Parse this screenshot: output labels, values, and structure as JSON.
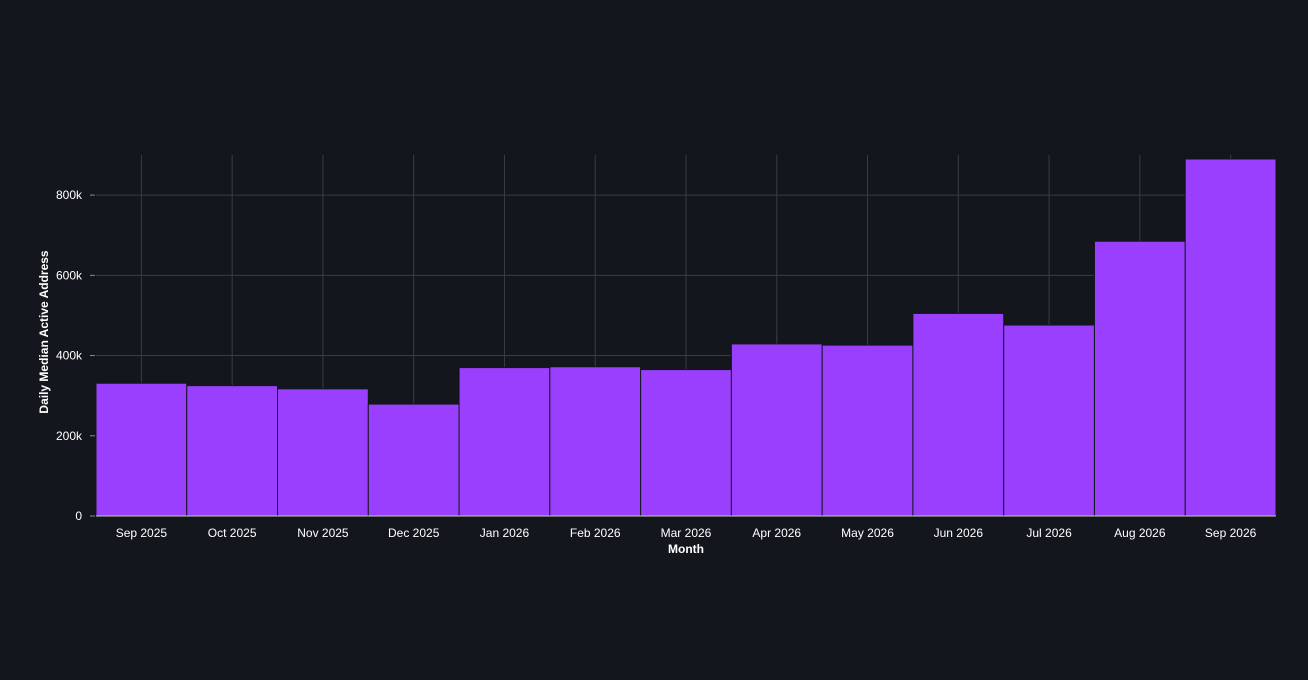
{
  "chart_data": {
    "type": "bar",
    "xlabel": "Month",
    "ylabel": "Daily Median Active Address",
    "categories": [
      "Sep 2025",
      "Oct 2025",
      "Nov 2025",
      "Dec 2025",
      "Jan 2026",
      "Feb 2026",
      "Mar 2026",
      "Apr 2026",
      "May 2026",
      "Jun 2026",
      "Jul 2026",
      "Aug 2026",
      "Sep 2026"
    ],
    "series": [
      {
        "values": [
          331000,
          325000,
          317000,
          279000,
          370000,
          372000,
          365000,
          429000,
          426000,
          505000,
          476000,
          685000,
          890000
        ]
      }
    ],
    "ylim": [
      0,
      900000
    ],
    "yticks": [
      0,
      200000,
      400000,
      600000,
      800000
    ],
    "ytick_labels": [
      "0",
      "200k",
      "400k",
      "600k",
      "800k"
    ],
    "grid": true,
    "bar_color": "#9a3ffe"
  }
}
